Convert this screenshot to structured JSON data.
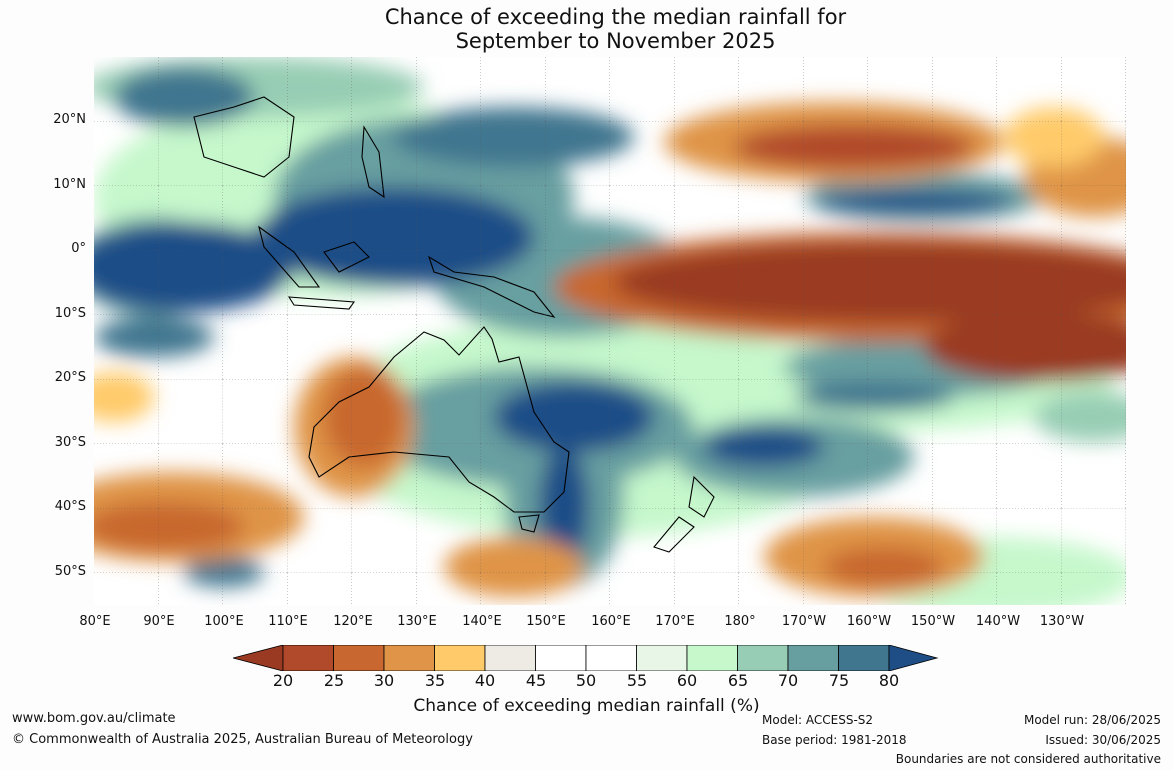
{
  "title_line1": "Chance of exceeding the median rainfall for",
  "title_line2": "September to November 2025",
  "map": {
    "lat_labels": [
      "20°N",
      "10°N",
      "0°",
      "10°S",
      "20°S",
      "30°S",
      "40°S",
      "50°S"
    ],
    "lon_labels": [
      "80°E",
      "90°E",
      "100°E",
      "110°E",
      "120°E",
      "130°E",
      "140°E",
      "150°E",
      "160°E",
      "170°E",
      "180°",
      "170°W",
      "160°W",
      "150°W",
      "140°W",
      "130°W"
    ],
    "lon_range": [
      80,
      240
    ],
    "lat_range": [
      -55,
      30
    ]
  },
  "colorbar": {
    "ticks": [
      "20",
      "25",
      "30",
      "35",
      "40",
      "45",
      "50",
      "55",
      "60",
      "65",
      "70",
      "75",
      "80"
    ],
    "colors": [
      "#9a3a22",
      "#b14a2a",
      "#c8672f",
      "#df9447",
      "#ffcb6a",
      "#eeeae4",
      "#ffffff",
      "#ffffff",
      "#e8f6e8",
      "#c6f8cc",
      "#97cdb4",
      "#679fa0",
      "#41768f",
      "#1f4e87"
    ],
    "title": "Chance of exceeding median rainfall (%)"
  },
  "footer": {
    "website": "www.bom.gov.au/climate",
    "copyright": "© Commonwealth of Australia 2025, Australian Bureau of Meteorology",
    "model": "Model: ACCESS-S2",
    "base_period": "Base period: 1981-2018",
    "model_run": "Model run: 28/06/2025",
    "issued": "Issued: 30/06/2025",
    "disclaimer": "Boundaries are not considered authoritative"
  }
}
